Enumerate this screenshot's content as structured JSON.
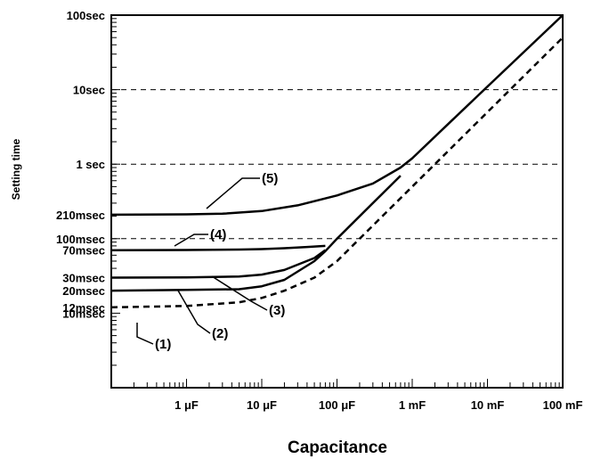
{
  "chart_data": {
    "type": "line",
    "xlabel": "Capacitance",
    "ylabel": "Setting time",
    "x_scale": "log",
    "y_scale": "log",
    "x_unit": "F",
    "y_unit": "s",
    "xlim": [
      1e-07,
      0.1
    ],
    "ylim": [
      0.001,
      100
    ],
    "x_ticks": [
      {
        "value": 1e-06,
        "label": "1 μF"
      },
      {
        "value": 1e-05,
        "label": "10 μF"
      },
      {
        "value": 0.0001,
        "label": "100 μF"
      },
      {
        "value": 0.001,
        "label": "1 mF"
      },
      {
        "value": 0.01,
        "label": "10 mF"
      },
      {
        "value": 0.1,
        "label": "100 mF"
      }
    ],
    "y_ticks": [
      {
        "value": 100,
        "label": "100sec"
      },
      {
        "value": 10,
        "label": "10sec"
      },
      {
        "value": 1,
        "label": "1 sec"
      },
      {
        "value": 0.21,
        "label": "210msec"
      },
      {
        "value": 0.1,
        "label": "100msec"
      },
      {
        "value": 0.07,
        "label": "70msec"
      },
      {
        "value": 0.03,
        "label": "30msec"
      },
      {
        "value": 0.02,
        "label": "20msec"
      },
      {
        "value": 0.012,
        "label": "12msec"
      },
      {
        "value": 0.01,
        "label": "10msec"
      }
    ],
    "grid_y": [
      10,
      1,
      0.1
    ],
    "series": [
      {
        "name": "(1)",
        "style": "dashed",
        "x": [
          1e-07,
          1e-06,
          5e-06,
          1e-05,
          2e-05,
          5e-05,
          0.0001,
          0.0003,
          0.001,
          0.01,
          0.1
        ],
        "y": [
          0.012,
          0.0125,
          0.014,
          0.016,
          0.02,
          0.03,
          0.05,
          0.15,
          0.5,
          5,
          50
        ]
      },
      {
        "name": "(2)",
        "style": "solid",
        "x": [
          1e-07,
          1e-06,
          5e-06,
          1e-05,
          2e-05,
          5e-05,
          7e-05,
          0.0001,
          0.0003,
          0.0007
        ],
        "y": [
          0.02,
          0.0205,
          0.021,
          0.023,
          0.028,
          0.05,
          0.068,
          0.1,
          0.3,
          0.7
        ]
      },
      {
        "name": "(3)",
        "style": "solid",
        "x": [
          1e-07,
          1e-06,
          5e-06,
          1e-05,
          2e-05,
          5e-05,
          7e-05
        ],
        "y": [
          0.03,
          0.0302,
          0.031,
          0.033,
          0.038,
          0.055,
          0.07
        ]
      },
      {
        "name": "(4)",
        "style": "solid",
        "x": [
          1e-07,
          1e-06,
          5e-06,
          1e-05,
          2e-05,
          4e-05,
          7e-05
        ],
        "y": [
          0.07,
          0.0705,
          0.0715,
          0.0725,
          0.0745,
          0.0775,
          0.08
        ]
      },
      {
        "name": "(5)",
        "style": "solid",
        "x": [
          1e-07,
          1e-06,
          3e-06,
          1e-05,
          3e-05,
          0.0001,
          0.0003,
          0.0007,
          0.001,
          0.01,
          0.1
        ],
        "y": [
          0.21,
          0.212,
          0.216,
          0.235,
          0.28,
          0.38,
          0.55,
          0.9,
          1.2,
          11,
          100
        ]
      }
    ],
    "annotations": [
      {
        "label": "(1)",
        "x": 3e-07,
        "y": 0.0095
      },
      {
        "label": "(2)",
        "x": 3e-06,
        "y": 0.0165
      },
      {
        "label": "(3)",
        "x": 5e-06,
        "y": 0.028
      },
      {
        "label": "(4)",
        "x": 1.2e-06,
        "y": 0.071
      },
      {
        "label": "(5)",
        "x": 2.5e-06,
        "y": 0.23
      }
    ]
  }
}
